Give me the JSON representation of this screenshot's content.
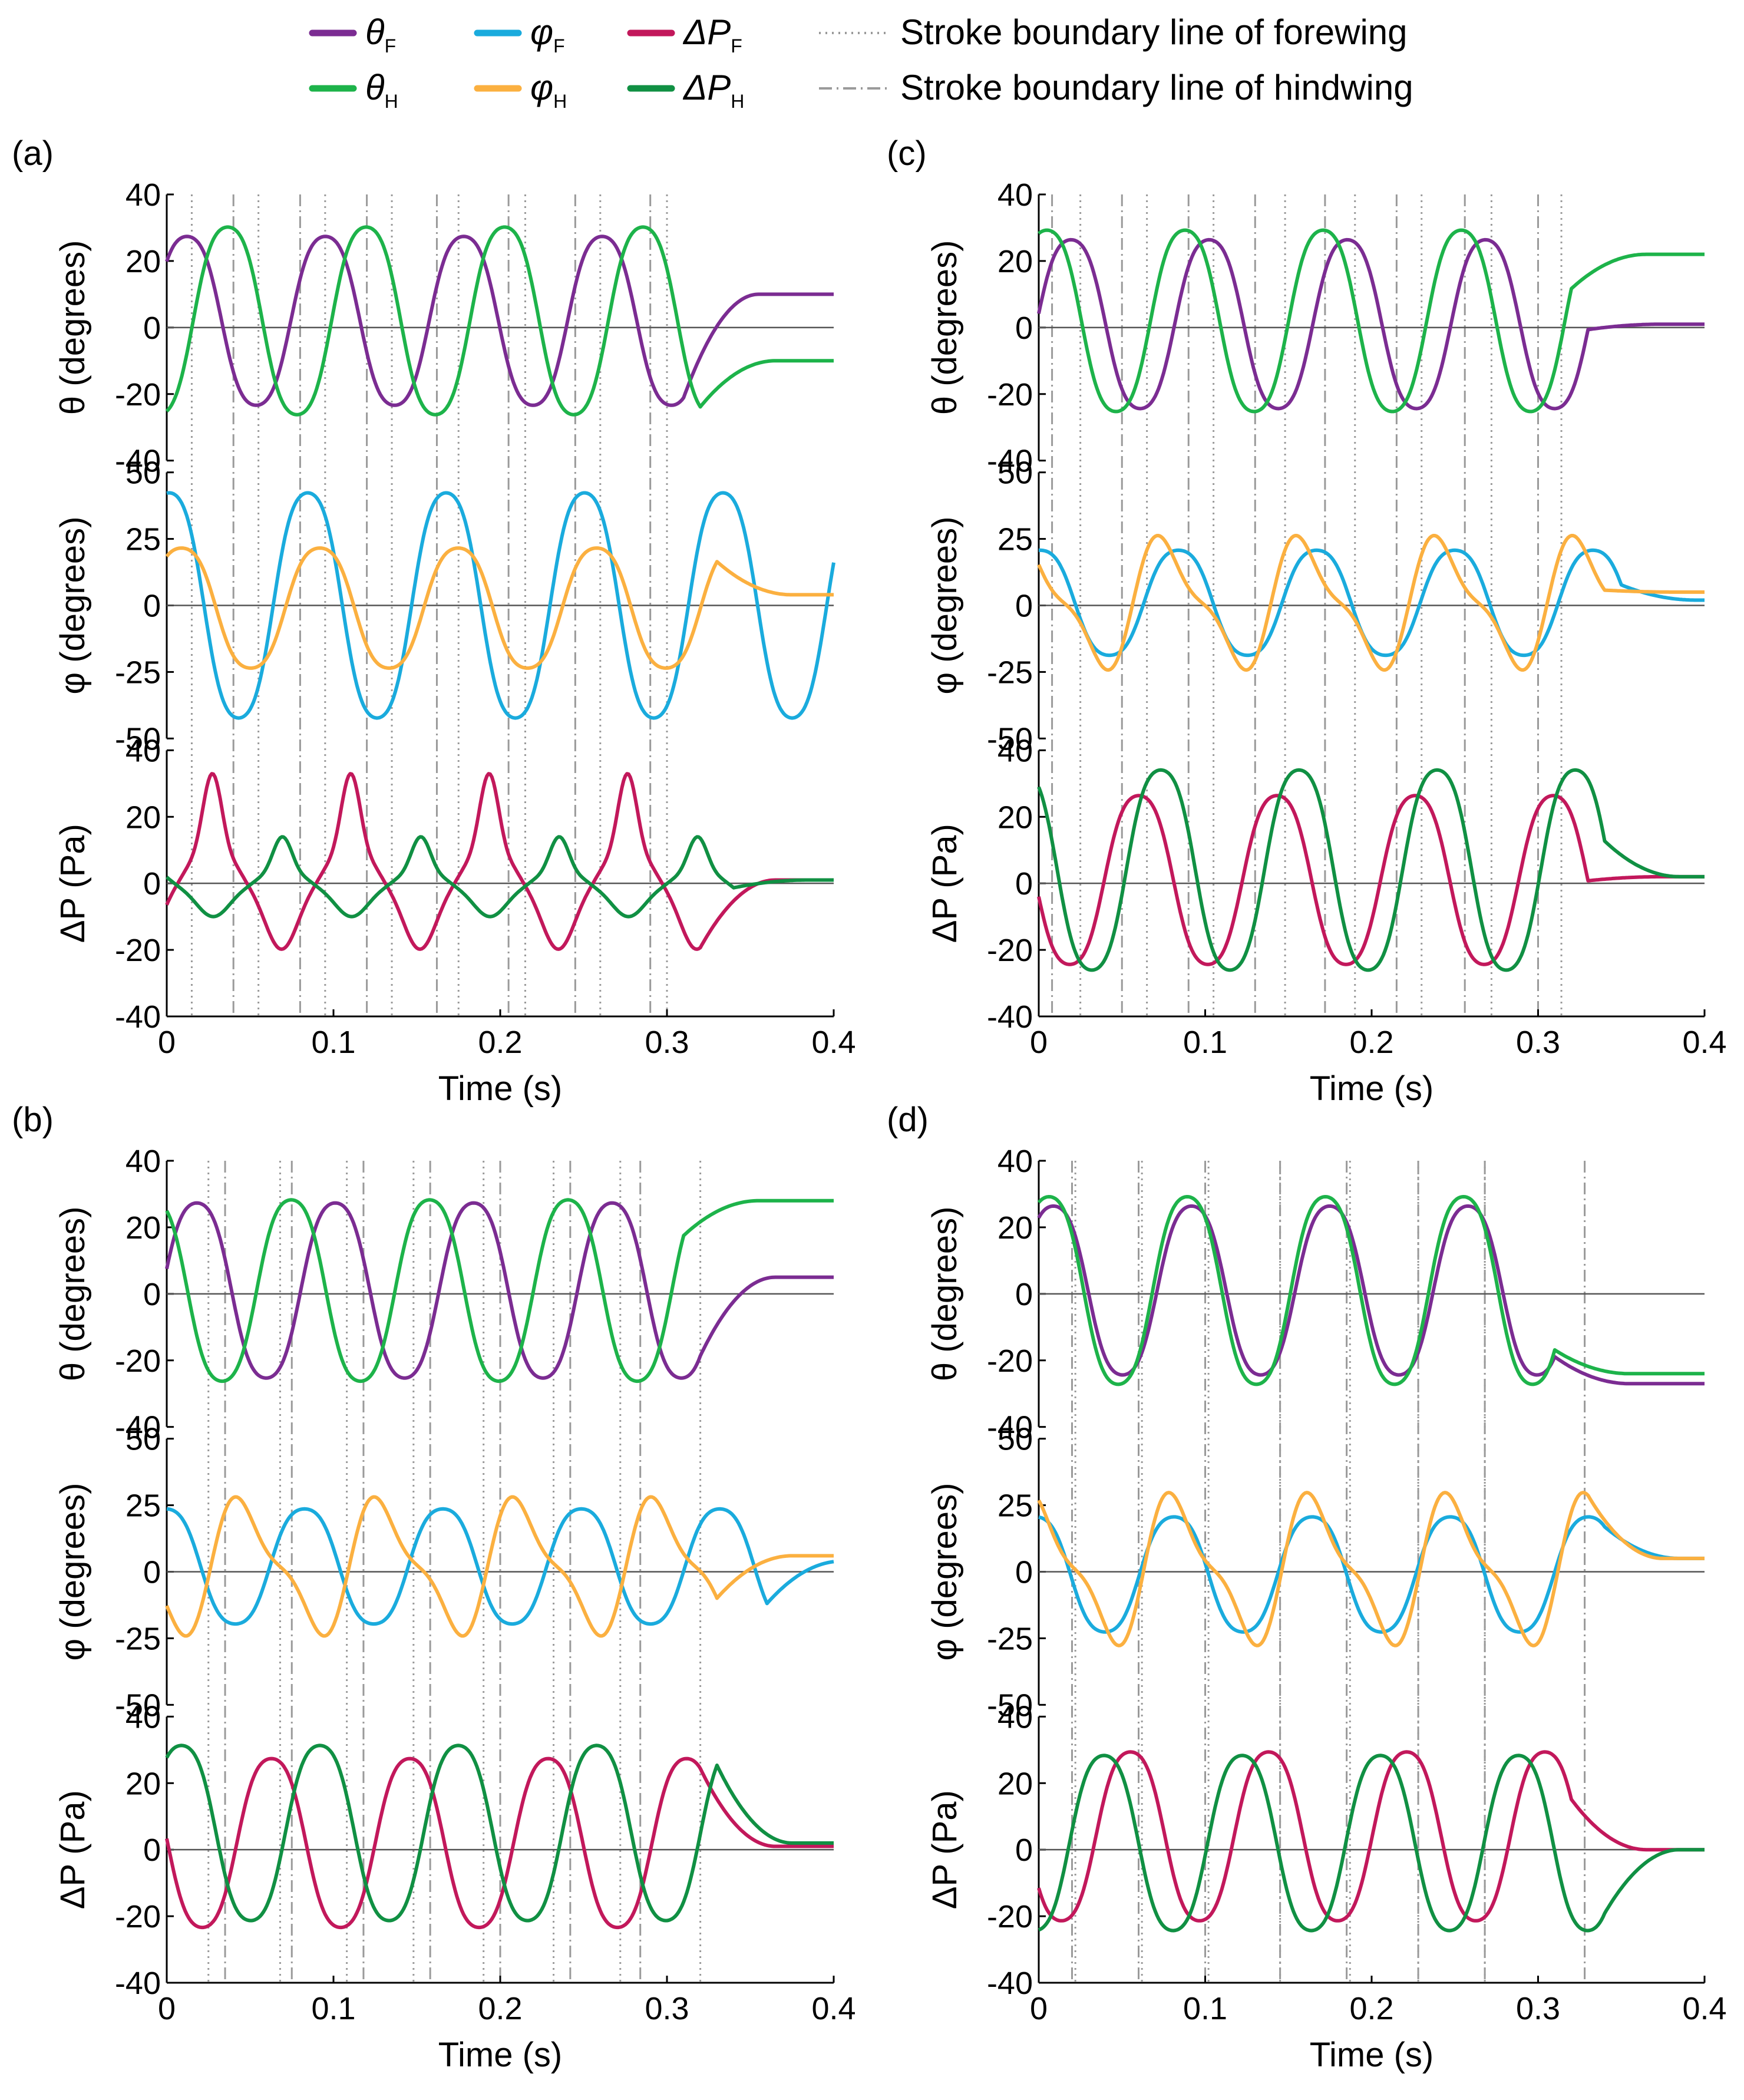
{
  "colors": {
    "theta_F": "#7B2C92",
    "theta_H": "#1DB34A",
    "phi_F": "#1AABDD",
    "phi_H": "#FBB040",
    "dP_F": "#C2185B",
    "dP_H": "#109043",
    "boundary": "#9a9a9a",
    "zero": "#555555"
  },
  "legend": {
    "items": [
      {
        "key": "theta_F",
        "sym": "θ",
        "sub": "F"
      },
      {
        "key": "phi_F",
        "sym": "φ",
        "sub": "F"
      },
      {
        "key": "dP_F",
        "sym": "ΔP",
        "sub": "F"
      },
      {
        "key": "theta_H",
        "sym": "θ",
        "sub": "H"
      },
      {
        "key": "phi_H",
        "sym": "φ",
        "sub": "H"
      },
      {
        "key": "dP_H",
        "sym": "ΔP",
        "sub": "H"
      }
    ],
    "forewing_boundary": "Stroke boundary line of forewing",
    "hindwing_boundary": "Stroke boundary line of hindwing"
  },
  "chart_data": [
    {
      "panel": "(a)",
      "type": "line",
      "xlabel": "Time (s)",
      "xlim": [
        0,
        0.4
      ],
      "xticks": [
        "0",
        "0.1",
        "0.2",
        "0.3",
        "0.4"
      ],
      "boundaries_forewing": [
        0.015,
        0.055,
        0.095,
        0.135,
        0.175,
        0.215,
        0.26,
        0.3
      ],
      "boundaries_hindwing": [
        0.04,
        0.08,
        0.12,
        0.162,
        0.205,
        0.245,
        0.29
      ],
      "subplots": [
        {
          "ylabel": "θ (degrees)",
          "ylim": [
            -40,
            40
          ],
          "yticks": [
            "40",
            "20",
            "0",
            "-20",
            "-40"
          ],
          "series": [
            {
              "name": "θF",
              "key": "theta_F",
              "model": "sine",
              "amp": 27,
              "period": 0.083,
              "phase": 0.65,
              "offset": 2,
              "t_end": 0.31,
              "final": 10
            },
            {
              "name": "θH",
              "key": "theta_H",
              "model": "sine",
              "amp": 30,
              "period": 0.083,
              "phase": -1.2,
              "offset": 2,
              "t_end": 0.32,
              "final": -10
            }
          ]
        },
        {
          "ylabel": "φ (degrees)",
          "ylim": [
            -50,
            50
          ],
          "yticks": [
            "50",
            "25",
            "0",
            "-25",
            "-50"
          ],
          "series": [
            {
              "name": "φF",
              "key": "phi_F",
              "model": "sine",
              "amp": 45,
              "period": 0.083,
              "phase": 1.45,
              "offset": 0,
              "t_end": 0.4,
              "final": 0
            },
            {
              "name": "φH",
              "key": "phi_H",
              "model": "sine",
              "amp": 24,
              "period": 0.083,
              "phase": 0.9,
              "offset": -1,
              "t_end": 0.33,
              "final": 4
            }
          ]
        },
        {
          "ylabel": "ΔP (Pa)",
          "ylim": [
            -40,
            40
          ],
          "yticks": [
            "40",
            "20",
            "0",
            "-20",
            "-40"
          ],
          "series": [
            {
              "name": "ΔPF",
              "key": "dP_F",
              "model": "pulse",
              "amp": 33,
              "period": 0.083,
              "phase": -0.5,
              "offset": 0,
              "t_end": 0.32,
              "final": 1
            },
            {
              "name": "ΔPH",
              "key": "dP_H",
              "model": "pulse",
              "amp": 15,
              "period": 0.083,
              "phase": 2.6,
              "offset": -1,
              "t_end": 0.34,
              "final": 1
            }
          ]
        }
      ]
    },
    {
      "panel": "(b)",
      "type": "line",
      "xlabel": "Time (s)",
      "xlim": [
        0,
        0.4
      ],
      "xticks": [
        "0",
        "0.1",
        "0.2",
        "0.3",
        "0.4"
      ],
      "boundaries_forewing": [
        0.025,
        0.068,
        0.108,
        0.148,
        0.19,
        0.232,
        0.272,
        0.32
      ],
      "boundaries_hindwing": [
        0.035,
        0.075,
        0.118,
        0.158,
        0.2,
        0.242,
        0.284
      ],
      "subplots": [
        {
          "ylabel": "θ (degrees)",
          "ylim": [
            -40,
            40
          ],
          "yticks": [
            "40",
            "20",
            "0",
            "-20",
            "-40"
          ],
          "series": [
            {
              "name": "θF",
              "key": "theta_F",
              "model": "sine",
              "amp": 28,
              "period": 0.083,
              "phase": 0.2,
              "offset": 1,
              "t_end": 0.32,
              "final": 5
            },
            {
              "name": "θH",
              "key": "theta_H",
              "model": "sine",
              "amp": 29,
              "period": 0.083,
              "phase": 2.2,
              "offset": 1,
              "t_end": 0.31,
              "final": 28
            }
          ]
        },
        {
          "ylabel": "φ (degrees)",
          "ylim": [
            -50,
            50
          ],
          "yticks": [
            "50",
            "25",
            "0",
            "-25",
            "-50"
          ],
          "series": [
            {
              "name": "φF",
              "key": "phi_F",
              "model": "sine",
              "amp": 23,
              "period": 0.083,
              "phase": 1.6,
              "offset": 2,
              "t_end": 0.36,
              "final": 4
            },
            {
              "name": "φH",
              "key": "phi_H",
              "model": "saw",
              "amp": 30,
              "period": 0.083,
              "phase": -2.0,
              "offset": 2,
              "t_end": 0.33,
              "final": 6
            }
          ]
        },
        {
          "ylabel": "ΔP (Pa)",
          "ylim": [
            -40,
            40
          ],
          "yticks": [
            "40",
            "20",
            "0",
            "-20",
            "-40"
          ],
          "series": [
            {
              "name": "ΔPF",
              "key": "dP_F",
              "model": "sine",
              "amp": 27,
              "period": 0.083,
              "phase": 3.1,
              "offset": 2,
              "t_end": 0.32,
              "final": 1
            },
            {
              "name": "ΔPH",
              "key": "dP_H",
              "model": "sine",
              "amp": 28,
              "period": 0.083,
              "phase": 0.9,
              "offset": 5,
              "t_end": 0.33,
              "final": 2
            }
          ]
        }
      ]
    },
    {
      "panel": "(c)",
      "type": "line",
      "xlabel": "Time (s)",
      "xlim": [
        0,
        0.4
      ],
      "xticks": [
        "0",
        "0.1",
        "0.2",
        "0.3",
        "0.4"
      ],
      "boundaries_forewing": [
        0.025,
        0.065,
        0.105,
        0.148,
        0.19,
        0.23,
        0.272,
        0.314
      ],
      "boundaries_hindwing": [
        0.008,
        0.05,
        0.09,
        0.13,
        0.172,
        0.215,
        0.256,
        0.3
      ],
      "subplots": [
        {
          "ylabel": "θ (degrees)",
          "ylim": [
            -40,
            40
          ],
          "yticks": [
            "40",
            "20",
            "0",
            "-20",
            "-40"
          ],
          "series": [
            {
              "name": "θF",
              "key": "theta_F",
              "model": "sine",
              "amp": 27,
              "period": 0.083,
              "phase": 0.1,
              "offset": 1,
              "t_end": 0.33,
              "final": 1
            },
            {
              "name": "θH",
              "key": "theta_H",
              "model": "sine",
              "amp": 29,
              "period": 0.083,
              "phase": 1.2,
              "offset": 2,
              "t_end": 0.32,
              "final": 22
            }
          ]
        },
        {
          "ylabel": "φ (degrees)",
          "ylim": [
            -50,
            50
          ],
          "yticks": [
            "50",
            "25",
            "0",
            "-25",
            "-50"
          ],
          "series": [
            {
              "name": "φF",
              "key": "phi_F",
              "model": "sine",
              "amp": 21,
              "period": 0.083,
              "phase": 1.5,
              "offset": 1,
              "t_end": 0.35,
              "final": 2
            },
            {
              "name": "φH",
              "key": "phi_H",
              "model": "saw",
              "amp": 29,
              "period": 0.083,
              "phase": 2.0,
              "offset": 1,
              "t_end": 0.34,
              "final": 5
            }
          ]
        },
        {
          "ylabel": "ΔP (Pa)",
          "ylim": [
            -40,
            40
          ],
          "yticks": [
            "40",
            "20",
            "0",
            "-20",
            "-40"
          ],
          "series": [
            {
              "name": "ΔPF",
              "key": "dP_F",
              "model": "sine",
              "amp": 27,
              "period": 0.083,
              "phase": 3.3,
              "offset": 1,
              "t_end": 0.33,
              "final": 2
            },
            {
              "name": "ΔPH",
              "key": "dP_H",
              "model": "sine",
              "amp": 32,
              "period": 0.083,
              "phase": 2.3,
              "offset": 4,
              "t_end": 0.34,
              "final": 2
            }
          ]
        }
      ]
    },
    {
      "panel": "(d)",
      "type": "line",
      "xlabel": "Time (s)",
      "xlim": [
        0,
        0.4
      ],
      "xticks": [
        "0",
        "0.1",
        "0.2",
        "0.3",
        "0.4"
      ],
      "boundaries_forewing": [
        0.022,
        0.062,
        0.102,
        0.145,
        0.187,
        0.228,
        0.268
      ],
      "boundaries_hindwing": [
        0.02,
        0.06,
        0.1,
        0.145,
        0.185,
        0.228,
        0.268,
        0.328
      ],
      "subplots": [
        {
          "ylabel": "θ (degrees)",
          "ylim": [
            -40,
            40
          ],
          "yticks": [
            "40",
            "20",
            "0",
            "-20",
            "-40"
          ],
          "series": [
            {
              "name": "θF",
              "key": "theta_F",
              "model": "sine",
              "amp": 27,
              "period": 0.083,
              "phase": 0.9,
              "offset": 1,
              "t_end": 0.31,
              "final": -27
            },
            {
              "name": "θH",
              "key": "theta_H",
              "model": "sine",
              "amp": 30,
              "period": 0.083,
              "phase": 1.1,
              "offset": 1,
              "t_end": 0.31,
              "final": -24
            }
          ]
        },
        {
          "ylabel": "φ (degrees)",
          "ylim": [
            -50,
            50
          ],
          "yticks": [
            "50",
            "25",
            "0",
            "-25",
            "-50"
          ],
          "series": [
            {
              "name": "φF",
              "key": "phi_F",
              "model": "sine",
              "amp": 23,
              "period": 0.083,
              "phase": 1.7,
              "offset": -1,
              "t_end": 0.34,
              "final": 5
            },
            {
              "name": "φH",
              "key": "phi_H",
              "model": "saw",
              "amp": 33,
              "period": 0.083,
              "phase": 1.5,
              "offset": 1,
              "t_end": 0.33,
              "final": 5
            }
          ]
        },
        {
          "ylabel": "ΔP (Pa)",
          "ylim": [
            -40,
            40
          ],
          "yticks": [
            "40",
            "20",
            "0",
            "-20",
            "-40"
          ],
          "series": [
            {
              "name": "ΔPF",
              "key": "dP_F",
              "model": "sine",
              "amp": 27,
              "period": 0.083,
              "phase": -2.6,
              "offset": 4,
              "t_end": 0.32,
              "final": 0
            },
            {
              "name": "ΔPH",
              "key": "dP_H",
              "model": "sine",
              "amp": 28,
              "period": 0.083,
              "phase": -1.4,
              "offset": 2,
              "t_end": 0.34,
              "final": 0
            }
          ]
        }
      ]
    }
  ]
}
